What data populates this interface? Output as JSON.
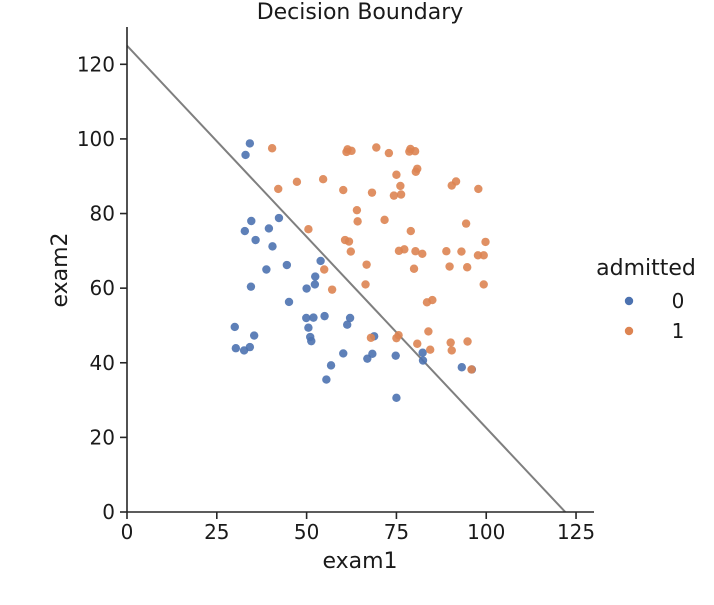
{
  "chart_data": {
    "type": "scatter",
    "title": "Decision Boundary",
    "xlabel": "exam1",
    "ylabel": "exam2",
    "xlim": [
      0,
      130
    ],
    "ylim": [
      0,
      130
    ],
    "xticks": [
      0,
      25,
      50,
      75,
      100,
      125
    ],
    "yticks": [
      0,
      20,
      40,
      60,
      80,
      100,
      120
    ],
    "grid": false,
    "legend": {
      "title": "admitted",
      "placement": "right",
      "entries": [
        "0",
        "1"
      ]
    },
    "boundary_line": {
      "color": "#7f7f7f",
      "points": [
        [
          0,
          125
        ],
        [
          122,
          0
        ]
      ]
    },
    "series": [
      {
        "name": "0",
        "color": "#4c72b0",
        "points": [
          [
            34.6,
            78.0
          ],
          [
            30.3,
            43.9
          ],
          [
            35.8,
            72.9
          ],
          [
            45.1,
            56.3
          ],
          [
            33.0,
            95.7
          ],
          [
            34.2,
            98.8
          ],
          [
            39.5,
            76.0
          ],
          [
            42.3,
            78.8
          ],
          [
            51.0,
            46.9
          ],
          [
            53.9,
            67.3
          ],
          [
            52.4,
            63.1
          ],
          [
            50.0,
            59.9
          ],
          [
            61.3,
            50.2
          ],
          [
            55.5,
            35.5
          ],
          [
            32.6,
            43.3
          ],
          [
            34.5,
            60.4
          ],
          [
            62.1,
            52.0
          ],
          [
            44.5,
            66.2
          ],
          [
            56.8,
            39.3
          ],
          [
            51.9,
            52.1
          ],
          [
            75.0,
            30.6
          ],
          [
            82.3,
            42.7
          ],
          [
            34.2,
            44.2
          ],
          [
            30.0,
            49.6
          ],
          [
            32.8,
            75.3
          ],
          [
            40.5,
            71.2
          ],
          [
            50.5,
            49.4
          ],
          [
            52.3,
            61.0
          ],
          [
            38.8,
            65.0
          ],
          [
            74.8,
            41.9
          ],
          [
            82.4,
            40.6
          ],
          [
            93.2,
            38.8
          ],
          [
            66.9,
            41.1
          ],
          [
            68.3,
            42.4
          ],
          [
            60.2,
            42.5
          ],
          [
            55.0,
            52.5
          ],
          [
            35.4,
            47.3
          ],
          [
            96.0,
            38.2
          ],
          [
            49.9,
            52.0
          ],
          [
            51.3,
            45.8
          ],
          [
            68.8,
            47.1
          ]
        ]
      },
      {
        "name": "1",
        "color": "#dd8452",
        "points": [
          [
            60.2,
            86.3
          ],
          [
            79.0,
            75.3
          ],
          [
            61.1,
            96.5
          ],
          [
            75.0,
            46.6
          ],
          [
            76.1,
            87.4
          ],
          [
            84.4,
            43.5
          ],
          [
            95.9,
            38.2
          ],
          [
            75.0,
            90.4
          ],
          [
            79.9,
            65.2
          ],
          [
            80.3,
            69.9
          ],
          [
            69.4,
            97.7
          ],
          [
            67.9,
            46.7
          ],
          [
            64.2,
            77.9
          ],
          [
            71.7,
            78.3
          ],
          [
            93.1,
            69.8
          ],
          [
            97.8,
            86.6
          ],
          [
            74.3,
            84.8
          ],
          [
            80.2,
            96.7
          ],
          [
            85.0,
            56.8
          ],
          [
            94.7,
            65.6
          ],
          [
            90.4,
            87.5
          ],
          [
            62.3,
            69.8
          ],
          [
            77.2,
            70.4
          ],
          [
            50.5,
            75.8
          ],
          [
            64.0,
            80.9
          ],
          [
            94.4,
            77.3
          ],
          [
            89.8,
            65.8
          ],
          [
            99.3,
            68.8
          ],
          [
            47.3,
            88.5
          ],
          [
            72.9,
            96.2
          ],
          [
            62.5,
            96.8
          ],
          [
            83.9,
            48.4
          ],
          [
            66.7,
            66.3
          ],
          [
            66.4,
            61.0
          ],
          [
            57.1,
            59.6
          ],
          [
            99.8,
            72.4
          ],
          [
            90.1,
            45.4
          ],
          [
            88.9,
            69.9
          ],
          [
            94.8,
            45.7
          ],
          [
            80.4,
            91.2
          ],
          [
            54.6,
            89.2
          ],
          [
            68.2,
            85.6
          ],
          [
            42.1,
            86.6
          ],
          [
            78.6,
            96.6
          ],
          [
            97.7,
            68.8
          ],
          [
            90.4,
            43.3
          ],
          [
            99.3,
            61.0
          ],
          [
            75.6,
            47.4
          ],
          [
            78.9,
            97.3
          ],
          [
            76.3,
            85.1
          ],
          [
            75.7,
            70.0
          ],
          [
            61.4,
            97.2
          ],
          [
            80.8,
            45.1
          ],
          [
            40.4,
            97.5
          ],
          [
            82.2,
            69.2
          ],
          [
            91.6,
            88.6
          ],
          [
            83.5,
            56.2
          ],
          [
            54.9,
            65.0
          ],
          [
            60.7,
            72.9
          ],
          [
            61.8,
            72.5
          ],
          [
            80.8,
            92.0
          ]
        ]
      }
    ]
  }
}
